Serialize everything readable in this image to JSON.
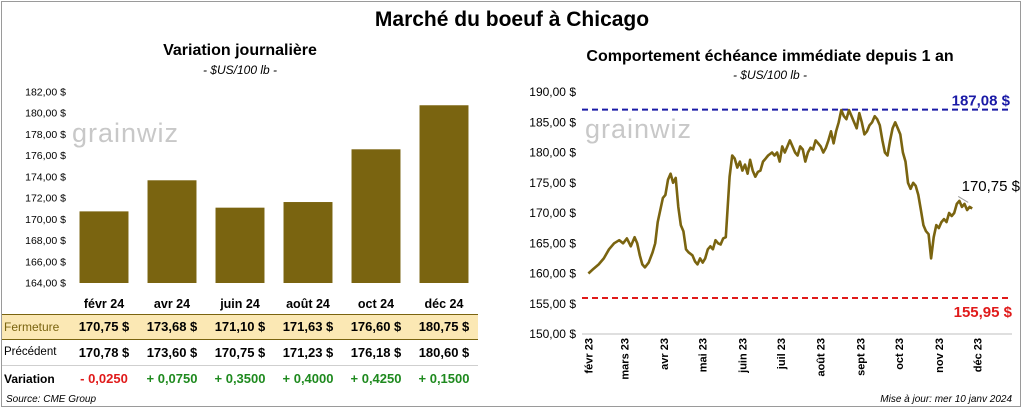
{
  "title": "Marché du boeuf à Chicago",
  "left_panel": {
    "title": "Variation  journalière",
    "unit": "- $US/100 lb -",
    "table": {
      "rows": [
        {
          "label": "Fermeture",
          "values": [
            "170,75  $",
            "173,68  $",
            "171,10  $",
            "171,63  $",
            "176,60  $",
            "180,75  $"
          ]
        },
        {
          "label": "Précédent",
          "values": [
            "170,78  $",
            "173,60  $",
            "170,75  $",
            "171,23  $",
            "176,18  $",
            "180,60  $"
          ]
        },
        {
          "label": "Variation",
          "values": [
            "- 0,0250",
            "+ 0,0750",
            "+ 0,3500",
            "+ 0,4000",
            "+ 0,4250",
            "+ 0,1500"
          ]
        }
      ]
    }
  },
  "right_panel": {
    "title": "Comportement  échéance immédiate depuis 1 an",
    "unit": "- $US/100 lb -"
  },
  "watermark": "grainwiz",
  "footer": {
    "source": "Source: CME Group",
    "updated": "Mise à jour: mer 10 janv 2024"
  },
  "colors": {
    "bar": "#7a6410",
    "line": "#7a6410",
    "high": "#1a1aa6",
    "low": "#e01a1a",
    "positive": "#1f8a1f",
    "negative": "#e01a1a"
  },
  "chart_data": [
    {
      "type": "bar",
      "categories": [
        "févr 24",
        "avr 24",
        "juin 24",
        "août 24",
        "oct 24",
        "déc 24"
      ],
      "values": [
        170.75,
        173.68,
        171.1,
        171.63,
        176.6,
        180.75
      ],
      "ylim": [
        164,
        182
      ],
      "yticks": [
        164,
        166,
        168,
        170,
        172,
        174,
        176,
        178,
        180,
        182
      ],
      "ytick_labels": [
        "164,00 $",
        "166,00 $",
        "168,00 $",
        "170,00 $",
        "172,00 $",
        "174,00 $",
        "176,00 $",
        "178,00 $",
        "180,00 $",
        "182,00 $"
      ],
      "grid": false
    },
    {
      "type": "line",
      "x_labels": [
        "févr 23",
        "mars 23",
        "avr 23",
        "mai 23",
        "juin 23",
        "juil 23",
        "août 23",
        "sept 23",
        "oct 23",
        "nov 23",
        "déc 23"
      ],
      "x_tick_days": [
        0,
        28,
        59,
        89,
        120,
        150,
        181,
        212,
        242,
        273,
        303
      ],
      "x_range_days": [
        -5,
        330
      ],
      "ylim": [
        150,
        190
      ],
      "yticks": [
        150,
        155,
        160,
        165,
        170,
        175,
        180,
        185,
        190
      ],
      "ytick_labels": [
        "150,00 $",
        "155,00 $",
        "160,00 $",
        "165,00 $",
        "170,00 $",
        "175,00 $",
        "180,00 $",
        "185,00 $",
        "190,00 $"
      ],
      "high": {
        "value": 187.08,
        "label": "187,08 $"
      },
      "low": {
        "value": 155.95,
        "label": "155,95 $"
      },
      "last": {
        "value": 170.75,
        "label": "170,75 $"
      },
      "series": [
        {
          "points": [
            [
              0,
              160.0
            ],
            [
              4,
              160.8
            ],
            [
              8,
              161.5
            ],
            [
              12,
              162.5
            ],
            [
              16,
              164.0
            ],
            [
              20,
              165.0
            ],
            [
              24,
              165.5
            ],
            [
              27,
              165.0
            ],
            [
              30,
              165.8
            ],
            [
              33,
              164.5
            ],
            [
              36,
              166.0
            ],
            [
              38,
              165.0
            ],
            [
              40,
              163.0
            ],
            [
              42,
              161.5
            ],
            [
              44,
              161.0
            ],
            [
              47,
              161.8
            ],
            [
              50,
              163.5
            ],
            [
              52,
              165.0
            ],
            [
              54,
              168.5
            ],
            [
              56,
              170.5
            ],
            [
              58,
              172.5
            ],
            [
              60,
              173.0
            ],
            [
              62,
              175.5
            ],
            [
              64,
              176.5
            ],
            [
              66,
              175.0
            ],
            [
              68,
              175.8
            ],
            [
              70,
              171.0
            ],
            [
              72,
              168.0
            ],
            [
              74,
              167.0
            ],
            [
              76,
              164.0
            ],
            [
              78,
              163.5
            ],
            [
              81,
              163.0
            ],
            [
              83,
              162.0
            ],
            [
              85,
              161.5
            ],
            [
              87,
              162.5
            ],
            [
              89,
              161.8
            ],
            [
              91,
              162.5
            ],
            [
              93,
              164.0
            ],
            [
              95,
              164.5
            ],
            [
              97,
              164.0
            ],
            [
              99,
              165.5
            ],
            [
              101,
              165.0
            ],
            [
              103,
              164.8
            ],
            [
              105,
              165.8
            ],
            [
              107,
              166.0
            ],
            [
              110,
              176.0
            ],
            [
              112,
              179.5
            ],
            [
              114,
              179.0
            ],
            [
              116,
              177.5
            ],
            [
              118,
              178.5
            ],
            [
              120,
              177.0
            ],
            [
              122,
              178.0
            ],
            [
              124,
              176.5
            ],
            [
              126,
              178.8
            ],
            [
              128,
              177.0
            ],
            [
              130,
              176.0
            ],
            [
              132,
              176.8
            ],
            [
              134,
              177.0
            ],
            [
              136,
              178.5
            ],
            [
              138,
              179.0
            ],
            [
              140,
              179.5
            ],
            [
              143,
              180.0
            ],
            [
              145,
              179.5
            ],
            [
              147,
              180.0
            ],
            [
              149,
              178.5
            ],
            [
              151,
              181.0
            ],
            [
              153,
              180.0
            ],
            [
              155,
              181.0
            ],
            [
              157,
              182.0
            ],
            [
              159,
              181.0
            ],
            [
              161,
              180.0
            ],
            [
              163,
              179.5
            ],
            [
              165,
              181.0
            ],
            [
              167,
              180.5
            ],
            [
              169,
              178.5
            ],
            [
              171,
              180.0
            ],
            [
              173,
              180.8
            ],
            [
              175,
              180.5
            ],
            [
              177,
              182.0
            ],
            [
              179,
              181.5
            ],
            [
              181,
              181.0
            ],
            [
              183,
              180.0
            ],
            [
              185,
              180.8
            ],
            [
              187,
              182.0
            ],
            [
              189,
              183.5
            ],
            [
              191,
              181.5
            ],
            [
              193,
              183.5
            ],
            [
              195,
              185.0
            ],
            [
              197,
              187.0
            ],
            [
              199,
              186.0
            ],
            [
              201,
              185.5
            ],
            [
              203,
              187.0
            ],
            [
              205,
              186.0
            ],
            [
              207,
              185.0
            ],
            [
              209,
              184.0
            ],
            [
              211,
              186.5
            ],
            [
              213,
              185.0
            ],
            [
              215,
              183.0
            ],
            [
              217,
              183.5
            ],
            [
              219,
              184.5
            ],
            [
              221,
              185.0
            ],
            [
              223,
              186.0
            ],
            [
              225,
              185.5
            ],
            [
              227,
              184.5
            ],
            [
              229,
              182.0
            ],
            [
              231,
              180.0
            ],
            [
              233,
              179.5
            ],
            [
              235,
              182.0
            ],
            [
              237,
              184.0
            ],
            [
              239,
              185.0
            ],
            [
              241,
              184.0
            ],
            [
              243,
              183.0
            ],
            [
              245,
              180.0
            ],
            [
              247,
              178.5
            ],
            [
              249,
              175.0
            ],
            [
              251,
              174.0
            ],
            [
              253,
              175.0
            ],
            [
              255,
              174.5
            ],
            [
              257,
              173.0
            ],
            [
              259,
              170.5
            ],
            [
              261,
              168.0
            ],
            [
              263,
              167.0
            ],
            [
              265,
              166.5
            ],
            [
              267,
              162.5
            ],
            [
              269,
              166.0
            ],
            [
              271,
              168.0
            ],
            [
              273,
              167.5
            ],
            [
              275,
              168.5
            ],
            [
              277,
              169.0
            ],
            [
              279,
              168.5
            ],
            [
              281,
              170.0
            ],
            [
              283,
              169.5
            ],
            [
              285,
              170.0
            ],
            [
              287,
              171.5
            ],
            [
              289,
              172.0
            ],
            [
              291,
              171.0
            ],
            [
              293,
              171.5
            ],
            [
              295,
              170.5
            ],
            [
              297,
              171.0
            ],
            [
              299,
              170.75
            ]
          ]
        }
      ]
    }
  ]
}
